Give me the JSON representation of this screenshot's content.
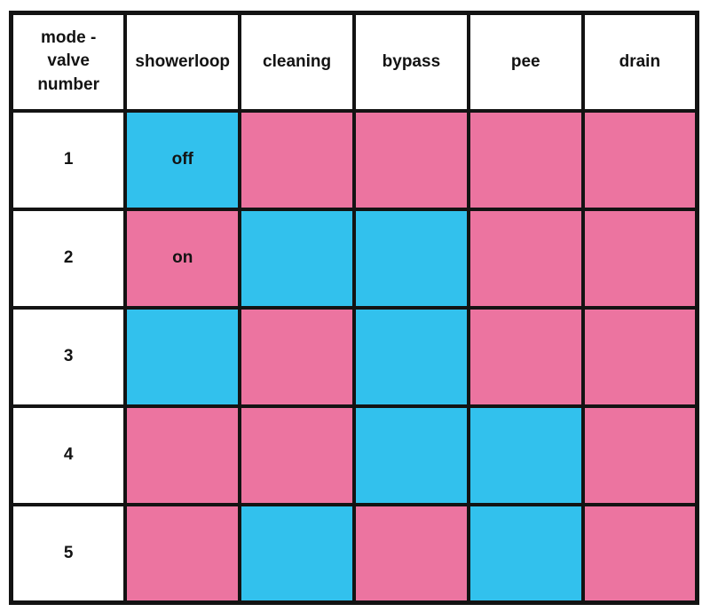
{
  "table": {
    "header": [
      "mode -\nvalve\nnumber",
      "showerloop",
      "cleaning",
      "bypass",
      "pee",
      "drain"
    ],
    "rows": [
      {
        "valve": "1",
        "cells": [
          {
            "state": "off",
            "label": "off"
          },
          {
            "state": "on",
            "label": ""
          },
          {
            "state": "on",
            "label": ""
          },
          {
            "state": "on",
            "label": ""
          },
          {
            "state": "on",
            "label": ""
          }
        ]
      },
      {
        "valve": "2",
        "cells": [
          {
            "state": "on",
            "label": "on"
          },
          {
            "state": "off",
            "label": ""
          },
          {
            "state": "off",
            "label": ""
          },
          {
            "state": "on",
            "label": ""
          },
          {
            "state": "on",
            "label": ""
          }
        ]
      },
      {
        "valve": "3",
        "cells": [
          {
            "state": "off",
            "label": ""
          },
          {
            "state": "on",
            "label": ""
          },
          {
            "state": "off",
            "label": ""
          },
          {
            "state": "on",
            "label": ""
          },
          {
            "state": "on",
            "label": ""
          }
        ]
      },
      {
        "valve": "4",
        "cells": [
          {
            "state": "on",
            "label": ""
          },
          {
            "state": "on",
            "label": ""
          },
          {
            "state": "off",
            "label": ""
          },
          {
            "state": "off",
            "label": ""
          },
          {
            "state": "on",
            "label": ""
          }
        ]
      },
      {
        "valve": "5",
        "cells": [
          {
            "state": "on",
            "label": ""
          },
          {
            "state": "off",
            "label": ""
          },
          {
            "state": "on",
            "label": ""
          },
          {
            "state": "off",
            "label": ""
          },
          {
            "state": "on",
            "label": ""
          }
        ]
      }
    ]
  },
  "colors": {
    "on_pink": "#EC74A0",
    "off_blue": "#32C1ED",
    "grid_black": "#131313",
    "background": "#FFFFFF"
  },
  "chart_data": {
    "type": "table",
    "title": "",
    "columns": [
      "mode - valve number",
      "showerloop",
      "cleaning",
      "bypass",
      "pee",
      "drain"
    ],
    "rows": [
      [
        "1",
        "off",
        "on",
        "on",
        "on",
        "on"
      ],
      [
        "2",
        "on",
        "off",
        "off",
        "on",
        "on"
      ],
      [
        "3",
        "off",
        "on",
        "off",
        "on",
        "on"
      ],
      [
        "4",
        "on",
        "on",
        "off",
        "off",
        "on"
      ],
      [
        "5",
        "on",
        "off",
        "on",
        "off",
        "on"
      ]
    ],
    "cell_color_coding": {
      "blue": "off",
      "pink": "on"
    },
    "visible_cell_labels": [
      {
        "row": "1",
        "column": "showerloop",
        "label": "off"
      },
      {
        "row": "2",
        "column": "showerloop",
        "label": "on"
      }
    ]
  }
}
